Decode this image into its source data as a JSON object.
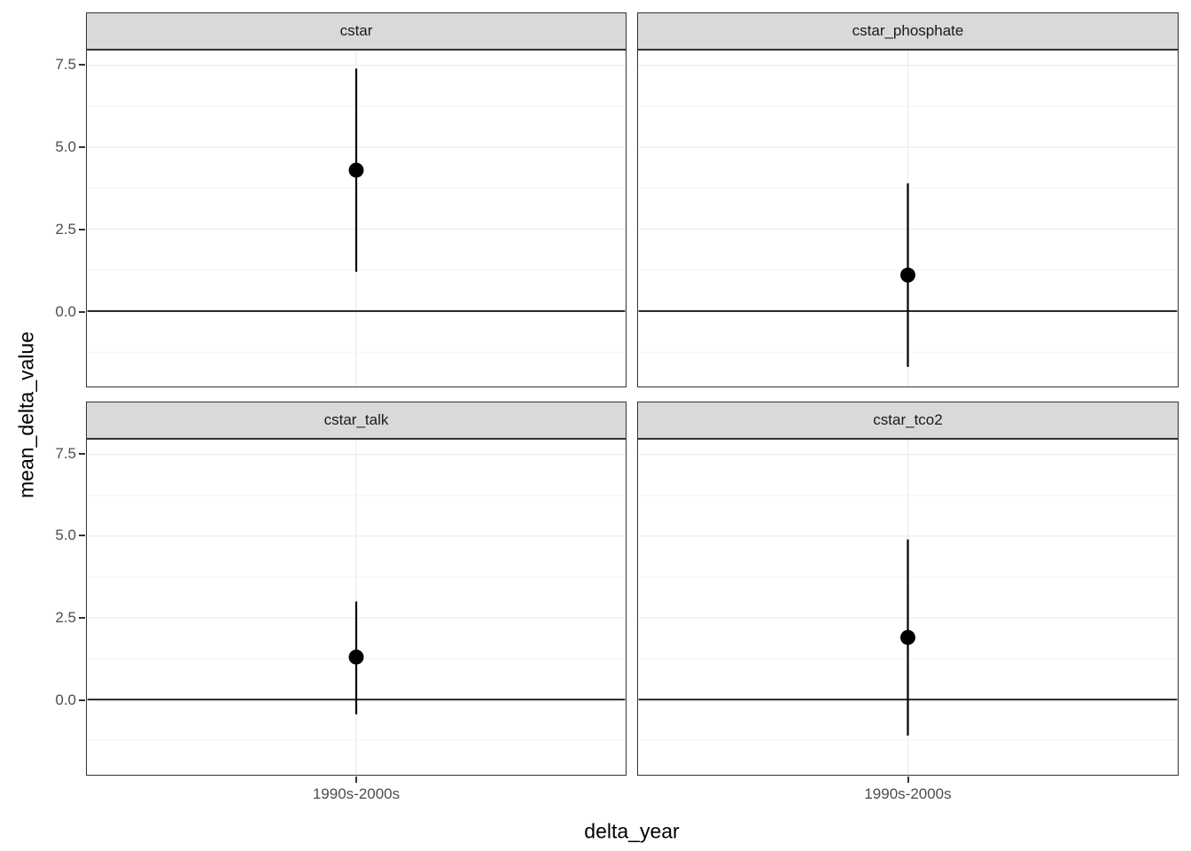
{
  "chart_data": {
    "type": "scatter",
    "subtype": "pointrange-errorbar-facets",
    "title": "",
    "xlabel": "delta_year",
    "ylabel": "mean_delta_value",
    "x_category": "1990s-2000s",
    "y_ticks": [
      0.0,
      2.5,
      5.0,
      7.5
    ],
    "y_tick_labels": [
      "0.0",
      "2.5",
      "5.0",
      "7.5"
    ],
    "y_minor_ticks": [
      -1.25,
      1.25,
      3.75,
      6.25
    ],
    "ylim": [
      -2.3,
      7.95
    ],
    "grid": "major+minor horizontal, major vertical at category",
    "legend": "none",
    "reference_line_y": 0,
    "facets": [
      {
        "label": "cstar",
        "x": "1990s-2000s",
        "mean": 4.3,
        "lower": 1.2,
        "upper": 7.4
      },
      {
        "label": "cstar_phosphate",
        "x": "1990s-2000s",
        "mean": 1.1,
        "lower": -1.7,
        "upper": 3.9
      },
      {
        "label": "cstar_talk",
        "x": "1990s-2000s",
        "mean": 1.3,
        "lower": -0.45,
        "upper": 3.0
      },
      {
        "label": "cstar_tco2",
        "x": "1990s-2000s",
        "mean": 1.9,
        "lower": -1.1,
        "upper": 4.9
      }
    ],
    "colors": {
      "point": "#000000",
      "errorbar": "#000000",
      "zero_line": "#1a1a1a",
      "strip_bg": "#d9d9d9",
      "panel_bg": "#ffffff",
      "panel_border": "#333333",
      "grid_major": "#ebebeb",
      "grid_minor": "#f4f4f4",
      "tick_text": "#4d4d4d"
    }
  }
}
